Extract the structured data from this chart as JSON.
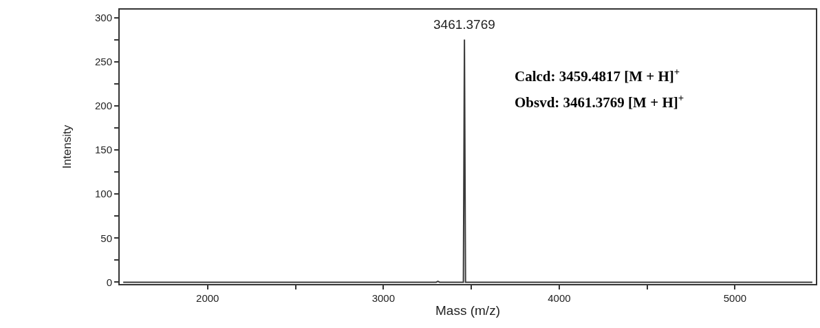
{
  "chart_data": {
    "type": "line",
    "xlabel": "Mass (m/z)",
    "ylabel": "Intensity",
    "series": [
      {
        "color": "#3a3a3a",
        "x": [
          1520,
          3300,
          3310,
          3320,
          3455,
          3461,
          3467,
          5440
        ],
        "values": [
          0,
          0,
          1,
          0,
          0,
          275,
          0,
          0
        ]
      }
    ],
    "xlim": [
      1500,
      5460
    ],
    "xticks": [
      2000,
      {
        "value": 2500,
        "label": null
      },
      3000,
      {
        "value": 3500,
        "label": null
      },
      4000,
      {
        "value": 4500,
        "label": null
      },
      5000
    ],
    "ylim": [
      -2,
      309
    ],
    "yticks": [
      0,
      {
        "value": 25,
        "label": null
      },
      50,
      {
        "value": 75,
        "label": null
      },
      100,
      {
        "value": 125,
        "label": null
      },
      150,
      {
        "value": 175,
        "label": null
      },
      200,
      {
        "value": 225,
        "label": null
      },
      250,
      {
        "value": 275,
        "label": null
      },
      300
    ],
    "annotations": [
      {
        "text": "3461.3769",
        "x": 3461,
        "y": 275
      },
      "Calcd: 3459.4817 [M + H]$^{+}$",
      "Obsvd: 3461.3769 [M + H]$^{+}$"
    ],
    "marker": "none",
    "line_style": "solid"
  }
}
